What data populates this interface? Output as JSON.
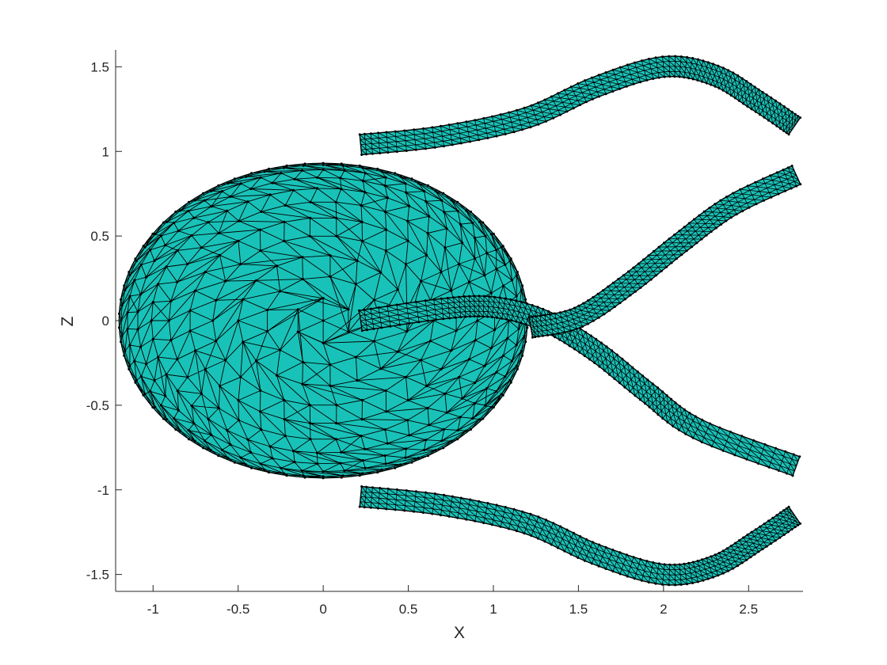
{
  "chart_data": {
    "type": "mesh",
    "title": "",
    "xlabel": "X",
    "ylabel": "Z",
    "xlim": [
      -1.22,
      2.82
    ],
    "ylim": [
      -1.6,
      1.6
    ],
    "xticks": [
      -1,
      -0.5,
      0,
      0.5,
      1,
      1.5,
      2,
      2.5
    ],
    "xtick_labels": [
      "-1",
      "-0.5",
      "0",
      "0.5",
      "1",
      "1.5",
      "2",
      "2.5"
    ],
    "yticks": [
      -1.5,
      -1,
      -0.5,
      0,
      0.5,
      1,
      1.5
    ],
    "ytick_labels": [
      "-1.5",
      "-1",
      "-0.5",
      "0",
      "0.5",
      "1",
      "1.5"
    ],
    "face_color": "#19c2b8",
    "edge_color": "#000000",
    "grid": false,
    "ellipsoid": {
      "center": [
        0,
        0
      ],
      "rx": 1.2,
      "rz": 0.93
    },
    "tubes": [
      {
        "name": "",
        "width": 0.12,
        "path": [
          [
            0.22,
            1.04
          ],
          [
            0.7,
            1.09
          ],
          [
            1.2,
            1.2
          ],
          [
            1.6,
            1.38
          ],
          [
            2.0,
            1.5
          ],
          [
            2.3,
            1.45
          ],
          [
            2.55,
            1.3
          ],
          [
            2.77,
            1.15
          ]
        ]
      },
      {
        "name": "",
        "width": 0.12,
        "path": [
          [
            0.22,
            0.0
          ],
          [
            0.7,
            0.07
          ],
          [
            1.0,
            0.08
          ],
          [
            1.3,
            0.0
          ],
          [
            1.6,
            -0.18
          ],
          [
            1.9,
            -0.42
          ],
          [
            2.2,
            -0.64
          ],
          [
            2.78,
            -0.86
          ]
        ]
      },
      {
        "name": "",
        "width": 0.12,
        "path": [
          [
            1.22,
            -0.04
          ],
          [
            1.5,
            0.02
          ],
          [
            1.8,
            0.22
          ],
          [
            2.1,
            0.46
          ],
          [
            2.4,
            0.68
          ],
          [
            2.78,
            0.86
          ]
        ]
      },
      {
        "name": "",
        "width": 0.12,
        "path": [
          [
            0.22,
            -1.04
          ],
          [
            0.7,
            -1.09
          ],
          [
            1.2,
            -1.2
          ],
          [
            1.6,
            -1.38
          ],
          [
            2.0,
            -1.5
          ],
          [
            2.3,
            -1.45
          ],
          [
            2.55,
            -1.3
          ],
          [
            2.77,
            -1.15
          ]
        ]
      }
    ]
  }
}
